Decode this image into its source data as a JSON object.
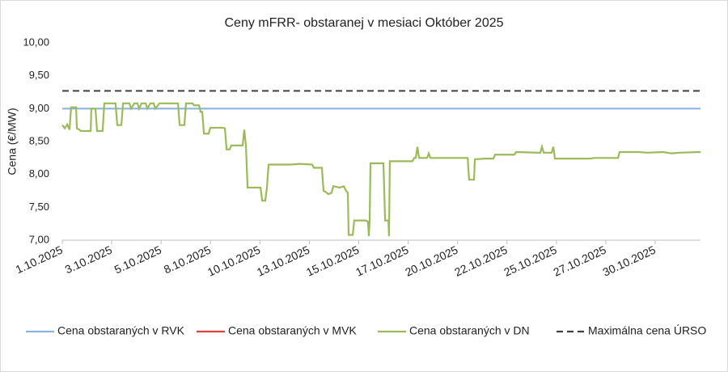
{
  "chart_data": {
    "type": "line",
    "title": "Ceny mFRR- obstaranej v mesiaci Október 2025",
    "y_label": "Cena (€/MW)",
    "xlim": [
      1,
      32
    ],
    "xticks": [
      {
        "value": 1,
        "label": "1.10.2025"
      },
      {
        "value": 3.4,
        "label": "3.10.2025"
      },
      {
        "value": 5.8,
        "label": "5.10.2025"
      },
      {
        "value": 8.2,
        "label": "8.10.2025"
      },
      {
        "value": 10.6,
        "label": "10.10.2025"
      },
      {
        "value": 13.0,
        "label": "13.10.2025"
      },
      {
        "value": 15.4,
        "label": "15.10.2025"
      },
      {
        "value": 17.8,
        "label": "17.10.2025"
      },
      {
        "value": 20.2,
        "label": "20.10.2025"
      },
      {
        "value": 22.6,
        "label": "22.10.2025"
      },
      {
        "value": 25.0,
        "label": "25.10.2025"
      },
      {
        "value": 27.4,
        "label": "27.10.2025"
      },
      {
        "value": 29.8,
        "label": "30.10.2025"
      }
    ],
    "ylim": [
      7,
      10
    ],
    "yticks": [
      {
        "value": 7,
        "label": "7,00"
      },
      {
        "value": 7.5,
        "label": "7,50"
      },
      {
        "value": 8,
        "label": "8,00"
      },
      {
        "value": 8.5,
        "label": "8,50"
      },
      {
        "value": 9,
        "label": "9,00"
      },
      {
        "value": 9.5,
        "label": "9,50"
      },
      {
        "value": 10,
        "label": "10,00"
      }
    ],
    "series": [
      {
        "name": "Cena obstaraných v RVK",
        "color": "#8db3e2",
        "x": [
          1,
          32
        ],
        "values": [
          9.0,
          9.0
        ]
      },
      {
        "name": "Cena obstaraných v MVK",
        "color": "#e0403a"
      },
      {
        "name": "Cena obstaraných v DN",
        "color": "#9bbb59",
        "x": [
          1.0,
          1.12,
          1.24,
          1.35,
          1.43,
          1.67,
          1.71,
          1.83,
          1.9,
          2.38,
          2.41,
          2.61,
          2.69,
          2.96,
          3.04,
          3.59,
          3.67,
          3.87,
          3.95,
          4.26,
          4.34,
          4.5,
          4.65,
          4.73,
          4.85,
          5.05,
          5.13,
          5.28,
          5.44,
          5.52,
          5.72,
          6.62,
          6.7,
          6.93,
          7.01,
          7.33,
          7.4,
          7.64,
          7.72,
          7.8,
          7.88,
          8.11,
          8.19,
          8.78,
          8.9,
          8.98,
          9.13,
          9.21,
          9.76,
          9.84,
          9.92,
          10.0,
          10.63,
          10.71,
          10.86,
          10.94,
          11.02,
          12.12,
          12.51,
          13.14,
          13.22,
          13.61,
          13.69,
          13.81,
          13.93,
          14.08,
          14.16,
          14.48,
          14.67,
          14.79,
          14.87,
          14.91,
          15.11,
          15.18,
          15.73,
          15.85,
          15.89,
          15.93,
          15.97,
          16.6,
          16.68,
          16.84,
          16.87,
          16.91,
          18.01,
          18.09,
          18.17,
          18.25,
          18.33,
          18.72,
          18.8,
          18.88,
          20.69,
          20.76,
          21.0,
          21.04,
          21.55,
          21.94,
          22.02,
          22.96,
          23.04,
          24.22,
          24.3,
          24.38,
          24.77,
          24.85,
          24.93,
          26.66,
          26.82,
          27.99,
          28.07,
          29.02,
          29.41,
          30.19,
          30.59,
          30.98,
          32.0
        ],
        "values": [
          8.75,
          8.7,
          8.76,
          8.68,
          9.02,
          9.02,
          8.7,
          8.68,
          8.66,
          8.66,
          9.0,
          9.0,
          8.66,
          8.66,
          9.08,
          9.08,
          8.75,
          8.75,
          9.08,
          9.08,
          9.0,
          9.08,
          9.08,
          9.0,
          9.08,
          9.08,
          9.0,
          9.08,
          9.08,
          9.0,
          9.08,
          9.08,
          8.75,
          8.75,
          9.08,
          9.08,
          9.05,
          9.05,
          8.95,
          8.95,
          8.62,
          8.62,
          8.71,
          8.71,
          8.7,
          8.38,
          8.38,
          8.44,
          8.44,
          8.68,
          8.44,
          7.8,
          7.8,
          7.6,
          7.6,
          7.8,
          8.15,
          8.15,
          8.16,
          8.15,
          8.1,
          8.1,
          7.75,
          7.73,
          7.7,
          7.72,
          7.82,
          7.8,
          7.82,
          7.75,
          7.72,
          7.08,
          7.08,
          7.3,
          7.3,
          7.28,
          7.06,
          7.3,
          8.17,
          8.17,
          7.3,
          7.3,
          7.06,
          8.2,
          8.2,
          8.25,
          8.25,
          8.42,
          8.25,
          8.25,
          8.32,
          8.25,
          8.25,
          7.92,
          7.92,
          8.23,
          8.24,
          8.24,
          8.3,
          8.3,
          8.34,
          8.33,
          8.42,
          8.33,
          8.33,
          8.42,
          8.24,
          8.24,
          8.25,
          8.25,
          8.34,
          8.34,
          8.33,
          8.34,
          8.32,
          8.33,
          8.34
        ]
      },
      {
        "name": "Maximálna cena ÚRSO",
        "color": "#404040",
        "dash": true,
        "x": [
          1,
          32
        ],
        "values": [
          9.27,
          9.27
        ]
      }
    ]
  }
}
